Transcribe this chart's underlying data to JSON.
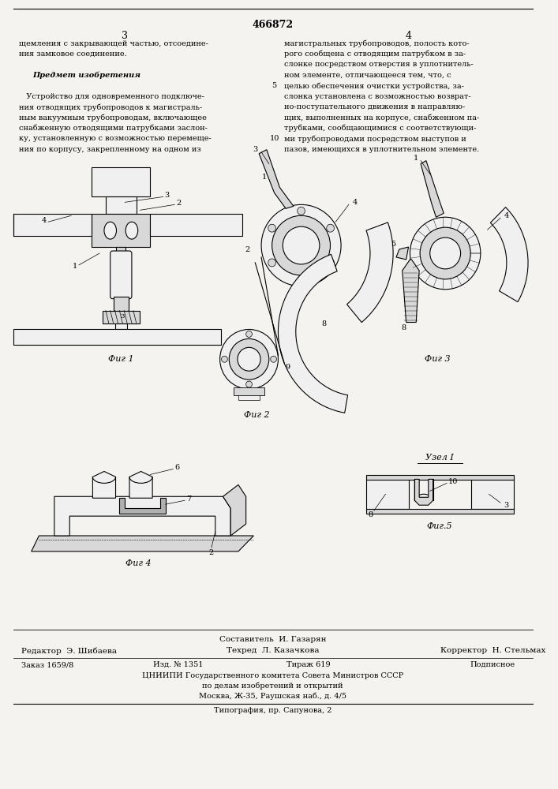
{
  "page_width": 7.07,
  "page_height": 10.0,
  "bg_color": "#f5f3ef",
  "patent_number": "466872",
  "page_num_left": "3",
  "page_num_right": "4",
  "text_left_col": [
    "щемления с закрывающей частью, отсоедине-",
    "ния замковое соединение.",
    "",
    "Предмет изобретения",
    "",
    "   Устройство для одновременного подключе-",
    "ния отводящих трубопроводов к магистраль-",
    "ным вакуумным трубопроводам, включающее",
    "снабженную отводящими патрубками заслон-",
    "ку, установленную с возможностью перемеще-",
    "ния по корпусу, закрепленному на одном из"
  ],
  "text_right_col": [
    "магистральных трубопроводов, полость кото-",
    "рого сообщена с отводящим патрубком в за-",
    "слонке посредством отверстия в уплотнитель-",
    "ном элементе, отличающееся тем, что, с",
    "целью обеспечения очистки устройства, за-",
    "слонка установлена с возможностью возврат-",
    "но-поступательного движения в направляю-",
    "щих, выполненных на корпусе, снабженном па-",
    "трубками, сообщающимися с соответствующи-",
    "ми трубопроводами посредством выступов и",
    "пазов, имеющихся в уплотнительном элементе."
  ],
  "fig1_label": "Фиг 1",
  "fig2_label": "Фиг 2",
  "fig3_label": "Фиг 3",
  "fig4_label": "Фиг 4",
  "fig5_label": "Фиг.5",
  "uzell_label": "Узел I",
  "footer_author": "Составитель  И. Газарян",
  "footer_editor": "Редактор  Э. Шибаева",
  "footer_tech": "Техред  Л. Казачкова",
  "footer_corrector": "Корректор  Н. Стельмах",
  "footer_order": "Заказ 1659/8",
  "footer_izd": "Изд. № 1351",
  "footer_tirazh": "Тираж 619",
  "footer_podp": "Подписное",
  "footer_tsniip": "ЦНИИПИ Государственного комитета Совета Министров СССР",
  "footer_po_delam": "по делам изобретений и открытий",
  "footer_moscow": "Москва, Ж-35, Раушская наб., д. 4/5",
  "footer_tipografia": "Типография, пр. Сапунова, 2"
}
